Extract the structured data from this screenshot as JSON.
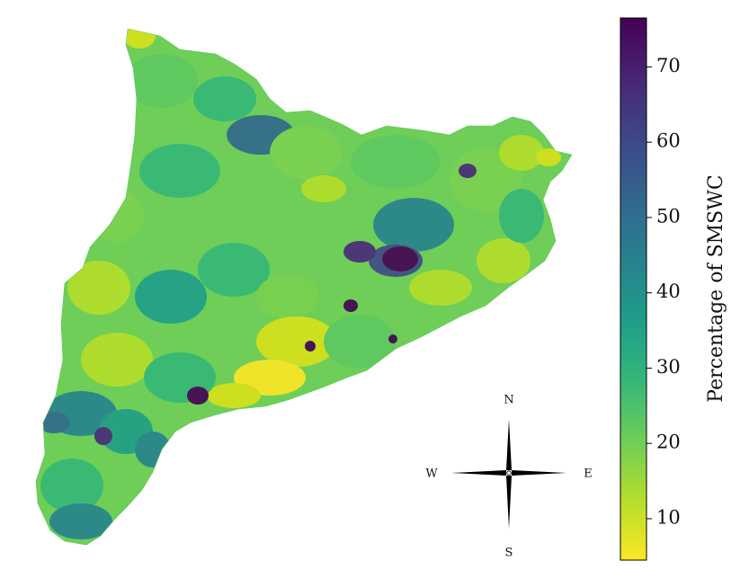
{
  "colorbar": {
    "label": "Percentage of SMSWC",
    "min": 4.5,
    "max": 76.5,
    "ticks": [
      {
        "value": 10,
        "label": "10"
      },
      {
        "value": 20,
        "label": "20"
      },
      {
        "value": 30,
        "label": "30"
      },
      {
        "value": 40,
        "label": "40"
      },
      {
        "value": 50,
        "label": "50"
      },
      {
        "value": 60,
        "label": "60"
      },
      {
        "value": 70,
        "label": "70"
      }
    ],
    "colormap": [
      "#fde725",
      "#b5de2b",
      "#6ece58",
      "#35b779",
      "#1f9e89",
      "#26828e",
      "#31688e",
      "#3e4989",
      "#482878",
      "#440154"
    ]
  },
  "compass": {
    "north": "N",
    "south": "S",
    "east": "E",
    "west": "W"
  }
}
